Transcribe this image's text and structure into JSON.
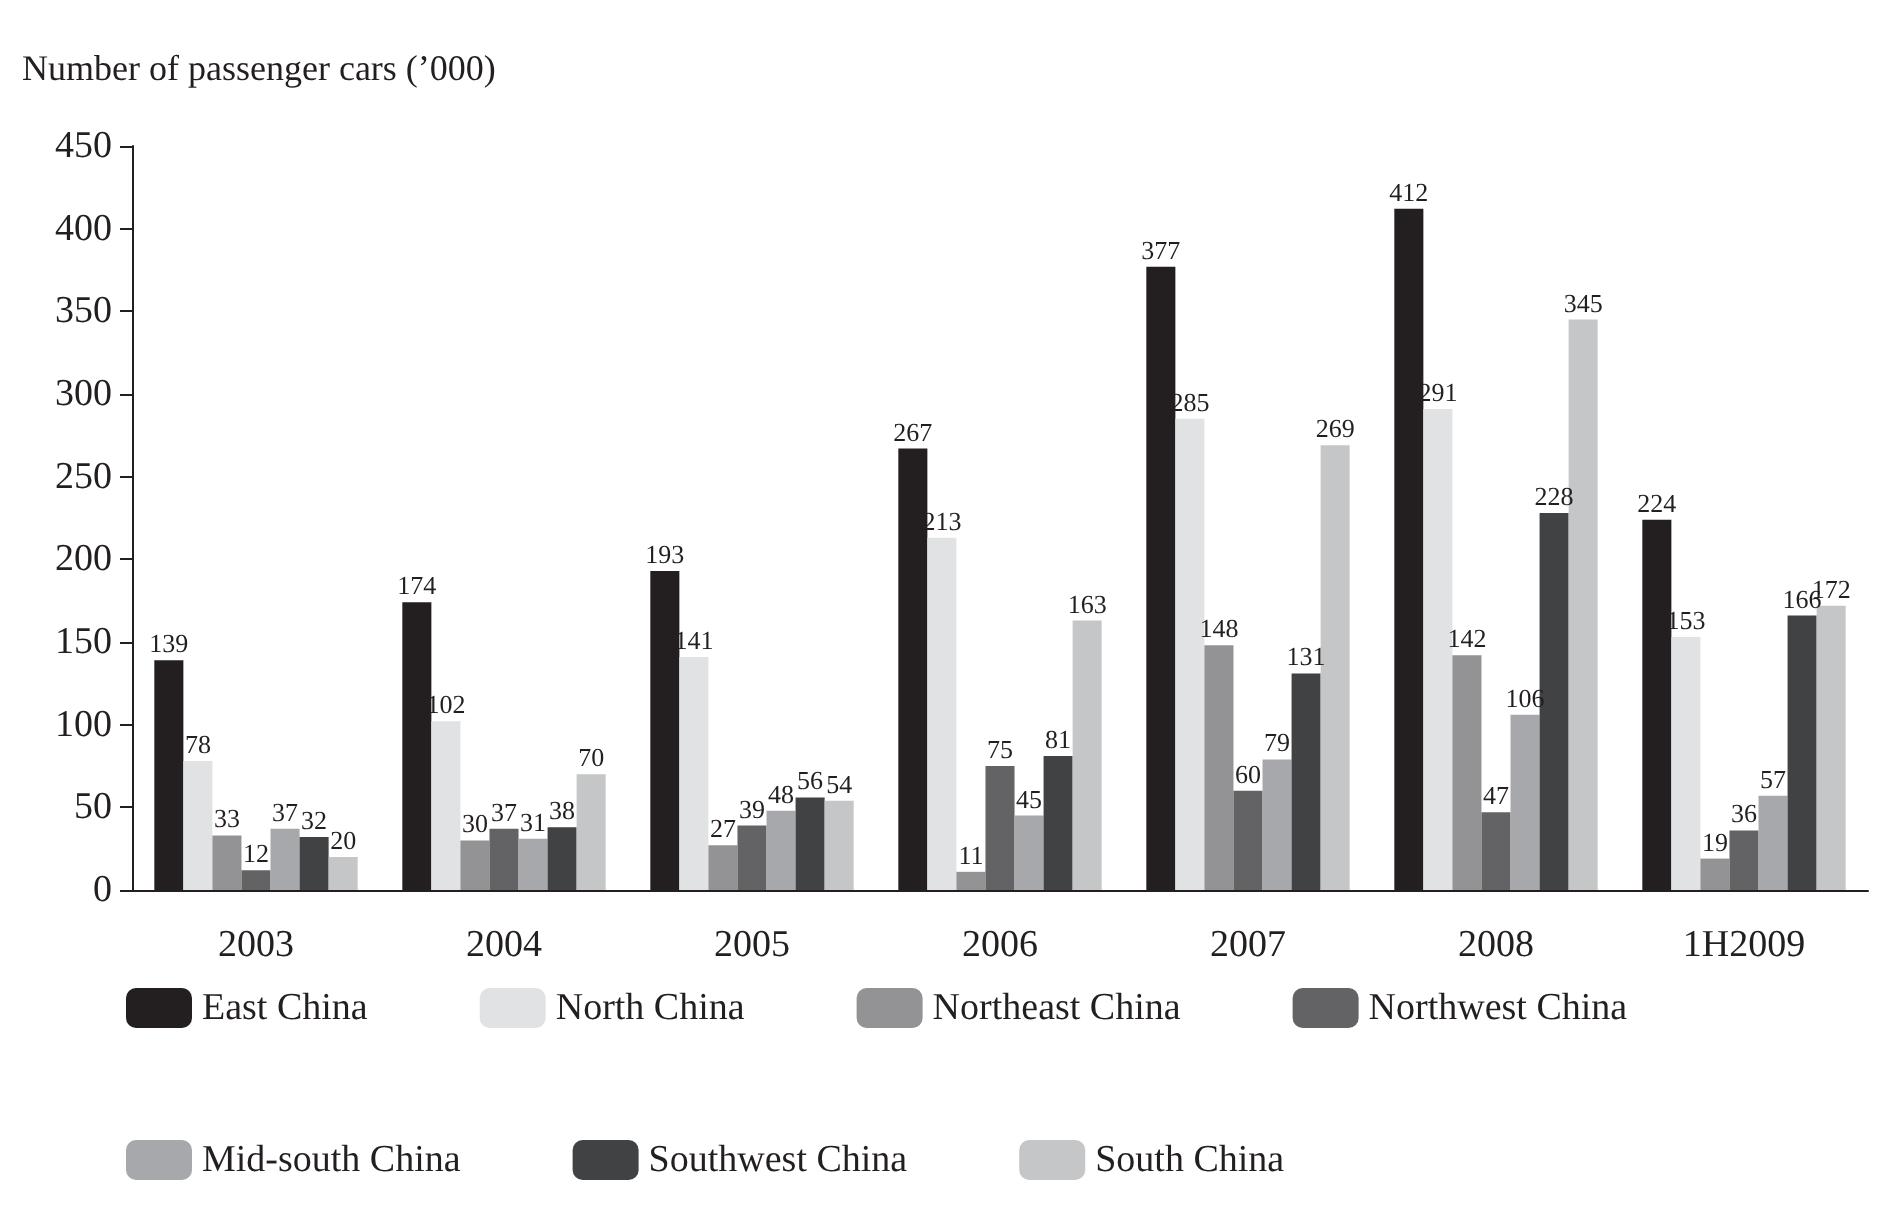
{
  "chart_data": {
    "type": "bar",
    "ylabel": "Number of passenger cars (’000)",
    "categories": [
      "2003",
      "2004",
      "2005",
      "2006",
      "2007",
      "2008",
      "1H2009"
    ],
    "series": [
      {
        "name": "East China",
        "color": "#231f20",
        "values": [
          139,
          174,
          193,
          267,
          377,
          412,
          224
        ]
      },
      {
        "name": "North China",
        "color": "#e1e2e4",
        "values": [
          78,
          102,
          141,
          213,
          285,
          291,
          153
        ]
      },
      {
        "name": "Northeast China",
        "color": "#939396",
        "values": [
          33,
          30,
          27,
          11,
          148,
          142,
          19
        ]
      },
      {
        "name": "Northwest China",
        "color": "#636365",
        "values": [
          12,
          37,
          39,
          75,
          60,
          47,
          36
        ]
      },
      {
        "name": "Mid-south China",
        "color": "#a7a8ab",
        "values": [
          37,
          31,
          48,
          45,
          79,
          106,
          57
        ]
      },
      {
        "name": "Southwest China",
        "color": "#414244",
        "values": [
          32,
          38,
          56,
          81,
          131,
          228,
          166
        ]
      },
      {
        "name": "South China",
        "color": "#c5c6c8",
        "values": [
          20,
          70,
          54,
          163,
          269,
          345,
          172
        ]
      }
    ],
    "ylim": [
      0,
      450
    ],
    "yticks": [
      0,
      50,
      100,
      150,
      200,
      250,
      300,
      350,
      400,
      450
    ],
    "data_labels": true,
    "grid": false,
    "legend": "bottom"
  }
}
